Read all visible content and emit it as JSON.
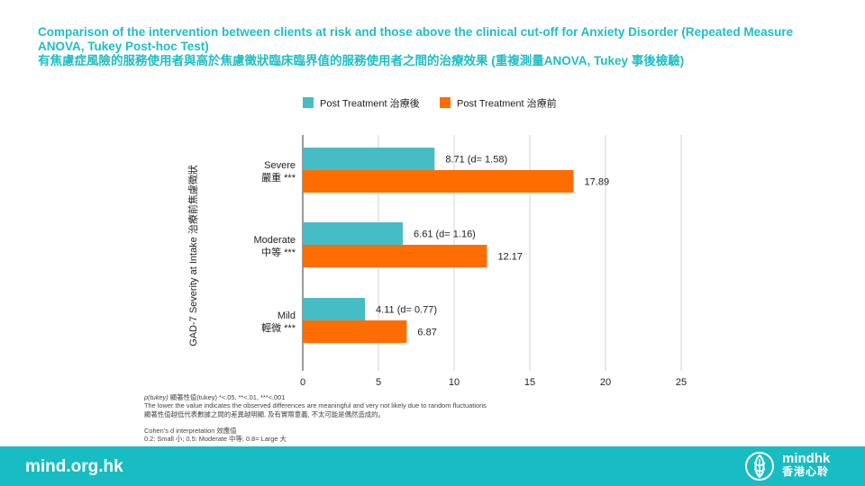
{
  "title": {
    "line1": "Comparison of the intervention between clients at risk and those above the clinical cut-off for Anxiety Disorder (Repeated Measure ANOVA, Tukey Post-hoc Test)",
    "line2": "有焦慮症風險的服務使用者與高於焦慮徵狀臨床臨界值的服務使用者之間的治療效果 (重複測量ANOVA, Tukey 事後檢驗)"
  },
  "chart_data": {
    "type": "bar",
    "orientation": "horizontal",
    "ylabel": "GAD-7 Severity at Intake  治療前焦慮徵狀",
    "categories": [
      {
        "en": "Severe",
        "zh": "嚴重",
        "sig": "***"
      },
      {
        "en": "Moderate",
        "zh": "中等",
        "sig": "***"
      },
      {
        "en": "Mild",
        "zh": "輕微",
        "sig": "***"
      }
    ],
    "series": [
      {
        "name": "Post Treatment 治療後",
        "color": "#46bdc6",
        "values": [
          8.71,
          6.61,
          4.11
        ],
        "labels": [
          "8.71 (d= 1.58)",
          "6.61 (d= 1.16)",
          "4.11 (d= 0.77)"
        ]
      },
      {
        "name": "Post Treatment 治療前",
        "color": "#ff6d01",
        "values": [
          17.89,
          12.17,
          6.87
        ],
        "labels": [
          "17.89",
          "12.17",
          "6.87"
        ]
      }
    ],
    "xlim": [
      0,
      25
    ],
    "xticks": [
      0,
      5,
      10,
      15,
      20,
      25
    ],
    "grid": true,
    "legend": "top"
  },
  "notes": {
    "line1_italic": "p(tukey)",
    "line1_rest": "  顯著性值(tukey)  *<.05, **<.01, ***<.001",
    "line2": "The lower the value indicates the observed differences are meaningful and very not likely due to random fluctuations",
    "line3": "顯著性值越低代表數據之間的差異越明顯, 及有實際意義, 不太可能是偶然造成的。",
    "line4": "Cohen’s d interpretation 效應值",
    "line5": "0.2: Small 小; 0.5: Moderate 中等; 0.8= Large 大"
  },
  "footer": {
    "url": "mind.org.hk",
    "brand_en": "mindhk",
    "brand_zh": "香港心聆",
    "logo_icon": "brain-leaf-logo-icon",
    "background": "#18bcc3"
  }
}
